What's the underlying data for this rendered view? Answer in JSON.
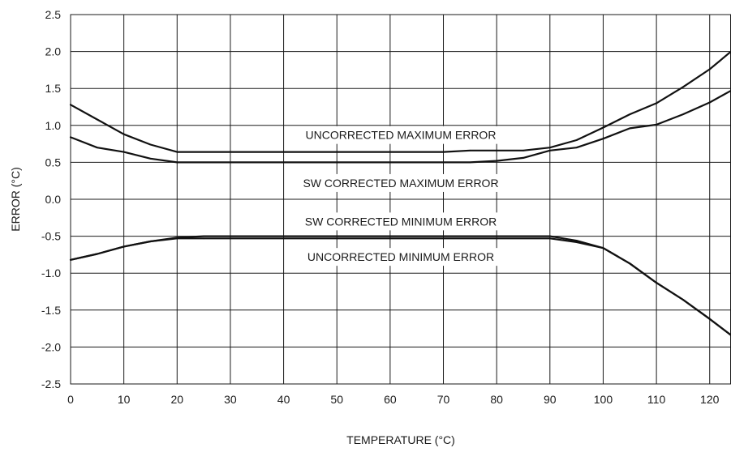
{
  "chart_data": {
    "type": "line",
    "title": "",
    "xlabel": "TEMPERATURE (°C)",
    "ylabel": "ERROR (°C)",
    "xlim": [
      0,
      124
    ],
    "ylim": [
      -2.5,
      2.5
    ],
    "grid": true,
    "x_ticks": [
      0,
      10,
      20,
      30,
      40,
      50,
      60,
      70,
      80,
      90,
      100,
      110,
      120
    ],
    "y_ticks": [
      2.5,
      2.0,
      1.5,
      1.0,
      0.5,
      0.0,
      -0.5,
      -1.0,
      -1.5,
      -2.0,
      -2.5
    ],
    "x_tick_labels": [
      "0",
      "10",
      "20",
      "30",
      "40",
      "50",
      "60",
      "70",
      "80",
      "90",
      "100",
      "110",
      "120"
    ],
    "y_tick_labels": [
      "2.5",
      "2.0",
      "1.5",
      "1.0",
      "0.5",
      "0.0",
      "-0.5",
      "-1.0",
      "-1.5",
      "-2.0",
      "-2.5"
    ],
    "annotations": [
      {
        "text": "UNCORRECTED MAXIMUM ERROR",
        "x": 62,
        "y": 0.87
      },
      {
        "text": "SW CORRECTED MAXIMUM ERROR",
        "x": 62,
        "y": 0.22
      },
      {
        "text": "SW CORRECTED MINIMUM ERROR",
        "x": 62,
        "y": -0.3
      },
      {
        "text": "UNCORRECTED MINIMUM ERROR",
        "x": 62,
        "y": -0.78
      }
    ],
    "series": [
      {
        "x": [
          0,
          5,
          10,
          15,
          20,
          25,
          30,
          40,
          50,
          60,
          70,
          75,
          80,
          85,
          90,
          95,
          100,
          105,
          110,
          115,
          120,
          124
        ],
        "values": [
          1.28,
          1.08,
          0.88,
          0.74,
          0.64,
          0.64,
          0.64,
          0.64,
          0.64,
          0.64,
          0.64,
          0.66,
          0.66,
          0.66,
          0.7,
          0.8,
          0.97,
          1.15,
          1.3,
          1.52,
          1.76,
          2.0
        ]
      },
      {
        "x": [
          0,
          5,
          10,
          15,
          20,
          25,
          30,
          40,
          50,
          60,
          70,
          75,
          80,
          85,
          90,
          95,
          100,
          105,
          110,
          115,
          120,
          124
        ],
        "values": [
          0.84,
          0.7,
          0.64,
          0.55,
          0.5,
          0.5,
          0.5,
          0.5,
          0.5,
          0.5,
          0.5,
          0.5,
          0.52,
          0.56,
          0.66,
          0.7,
          0.82,
          0.96,
          1.01,
          1.15,
          1.31,
          1.47
        ]
      },
      {
        "x": [
          0,
          5,
          10,
          15,
          20,
          25,
          30,
          40,
          50,
          60,
          70,
          80,
          90,
          95,
          100,
          105,
          110,
          115,
          120,
          124
        ],
        "values": [
          -0.82,
          -0.74,
          -0.64,
          -0.57,
          -0.52,
          -0.5,
          -0.5,
          -0.5,
          -0.5,
          -0.5,
          -0.5,
          -0.5,
          -0.5,
          -0.56,
          -0.66,
          -0.87,
          -1.13,
          -1.36,
          -1.62,
          -1.84
        ]
      },
      {
        "x": [
          0,
          5,
          10,
          15,
          20,
          25,
          30,
          40,
          50,
          60,
          70,
          80,
          90,
          95,
          100,
          105,
          110,
          115,
          120,
          124
        ],
        "values": [
          -0.82,
          -0.74,
          -0.64,
          -0.57,
          -0.53,
          -0.53,
          -0.53,
          -0.53,
          -0.53,
          -0.53,
          -0.53,
          -0.53,
          -0.53,
          -0.58,
          -0.66,
          -0.87,
          -1.13,
          -1.36,
          -1.62,
          -1.84
        ]
      }
    ]
  }
}
